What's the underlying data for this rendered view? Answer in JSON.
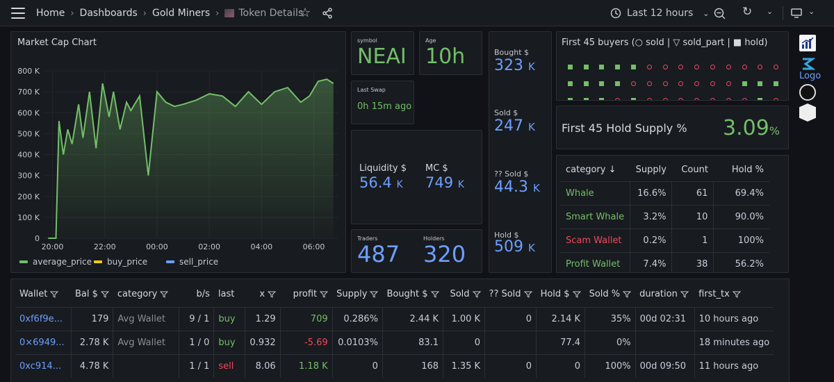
{
  "breadcrumb": {
    "home": "Home",
    "dashboards": "Dashboards",
    "folder": "Gold Miners",
    "current": "Token Details"
  },
  "time_range": "Last 12 hours",
  "market_cap_chart": {
    "title": "Market Cap Chart",
    "yticks": [
      "800 K",
      "700 K",
      "600 K",
      "500 K",
      "400 K",
      "300 K",
      "200 K",
      "100 K",
      "0"
    ],
    "xticks": [
      "20:00",
      "22:00",
      "00:00",
      "02:00",
      "04:00",
      "06:00"
    ],
    "legend": [
      "average_price",
      "buy_price",
      "sell_price"
    ],
    "legend_colors": [
      "#73bf69",
      "#f2cc0c",
      "#6e9fff"
    ]
  },
  "chart_data": {
    "type": "line",
    "title": "Market Cap Chart",
    "x": [
      "19:50",
      "20:08",
      "20:15",
      "20:25",
      "20:35",
      "20:45",
      "21:00",
      "21:10",
      "21:25",
      "21:40",
      "21:55",
      "22:10",
      "22:20",
      "22:35",
      "22:50",
      "23:00",
      "23:20",
      "23:40",
      "00:00",
      "00:20",
      "00:40",
      "01:00",
      "01:30",
      "02:00",
      "02:30",
      "03:00",
      "03:30",
      "04:00",
      "04:30",
      "05:00",
      "05:30",
      "05:50",
      "06:10",
      "06:30",
      "06:45"
    ],
    "series": [
      {
        "name": "average_price",
        "values": [
          0,
          0,
          560,
          400,
          520,
          450,
          640,
          480,
          700,
          430,
          740,
          580,
          700,
          520,
          650,
          610,
          680,
          300,
          700,
          650,
          630,
          640,
          660,
          690,
          680,
          630,
          700,
          640,
          700,
          720,
          650,
          680,
          750,
          760,
          740
        ]
      }
    ],
    "ylim": [
      0,
      800
    ],
    "yunit": "K"
  },
  "symbol": {
    "label": "symbol",
    "value": "NEAI"
  },
  "age": {
    "label": "Age",
    "value": "10h"
  },
  "last_swap": {
    "label": "Last Swap",
    "value": "0h 15m ago"
  },
  "liquidity": {
    "label": "Liquidity $",
    "value": "56.4",
    "unit": "K"
  },
  "mc": {
    "label": "MC $",
    "value": "749",
    "unit": "K"
  },
  "traders": {
    "label": "Traders",
    "value": "487"
  },
  "holders": {
    "label": "Holders",
    "value": "320"
  },
  "bought": {
    "label": "Bought $",
    "value": "323",
    "unit": "K"
  },
  "sold": {
    "label": "Sold $",
    "value": "247",
    "unit": "K"
  },
  "unk_sold": {
    "label": "?? Sold $",
    "value": "44.3",
    "unit": "K"
  },
  "hold": {
    "label": "Hold $",
    "value": "509",
    "unit": "K"
  },
  "first45": {
    "title": "First 45 buyers (○ sold | ▽ sold_part | ■ hold)",
    "rows": [
      [
        "hold",
        "hold",
        "hold",
        "hold",
        "hold",
        "sold",
        "sold",
        "sold",
        "sold",
        "sold",
        "sold",
        "sold",
        "sold",
        "sold",
        "sold"
      ],
      [
        "hold",
        "hold",
        "hold",
        "hold",
        "sold",
        "sold",
        "sold",
        "sold",
        "sold",
        "sold",
        "sold",
        "hold",
        "hold",
        "hold",
        "hold"
      ],
      [
        "hold",
        "hold",
        "hold",
        "sold",
        "hold",
        "sold",
        "sold",
        "sold",
        "sold",
        "sold",
        "sold",
        "sold",
        "hold",
        "sold",
        "sold"
      ]
    ]
  },
  "hold_supply": {
    "label": "First 45 Hold Supply %",
    "value": "3.09",
    "unit": "%"
  },
  "category_table": {
    "headers": [
      "category",
      "Supply",
      "Count",
      "Hold %"
    ],
    "rows": [
      {
        "category": "Whale",
        "supply": "16.6%",
        "count": "61",
        "hold": "69.4%",
        "color": "green"
      },
      {
        "category": "Smart Whale",
        "supply": "3.2%",
        "count": "10",
        "hold": "90.0%",
        "color": "green"
      },
      {
        "category": "Scam Wallet",
        "supply": "0.2%",
        "count": "1",
        "hold": "100%",
        "color": "red"
      },
      {
        "category": "Profit Wallet",
        "supply": "7.4%",
        "count": "38",
        "hold": "56.2%",
        "color": "green"
      }
    ]
  },
  "side_logo_text": "Logo",
  "wallet_table": {
    "headers": [
      "Wallet",
      "Bal $",
      "category",
      "b/s",
      "last",
      "x",
      "profit",
      "Supply",
      "Bought $",
      "Sold",
      "?? Sold",
      "Hold $",
      "Sold %",
      "duration",
      "first_tx"
    ],
    "rows": [
      {
        "wallet": "0xf6f9e...",
        "bal": "179",
        "category": "Avg Wallet",
        "bs": "9 / 1",
        "last": "buy",
        "x": "1.29",
        "profit": "709",
        "supply": "0.286%",
        "bought": "2.44 K",
        "sold": "1.00 K",
        "unk": "0",
        "hold": "2.14 K",
        "soldpct": "35%",
        "duration": "00d 02:31",
        "first_tx": "10 hours ago"
      },
      {
        "wallet": "0×6949...",
        "bal": "2.78 K",
        "category": "Avg Wallet",
        "bs": "1 / 0",
        "last": "buy",
        "x": "0.932",
        "profit": "-5.69",
        "supply": "0.0103%",
        "bought": "83.1",
        "sold": "0",
        "unk": "",
        "hold": "77.4",
        "soldpct": "0%",
        "duration": "",
        "first_tx": "18 minutes ago"
      },
      {
        "wallet": "0xc914...",
        "bal": "4.78 K",
        "category": "",
        "bs": "1 / 1",
        "last": "sell",
        "x": "8.06",
        "profit": "1.18 K",
        "supply": "0",
        "bought": "168",
        "sold": "1.35 K",
        "unk": "0",
        "hold": "0",
        "soldpct": "100%",
        "duration": "00d 09:50",
        "first_tx": "11 hours ago"
      }
    ]
  }
}
